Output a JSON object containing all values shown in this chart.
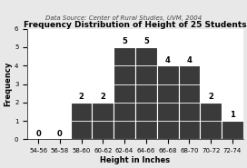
{
  "title": "Frequency Distribution of Height of 25 Students",
  "subtitle": "Data Source: Center of Rural Studies, UVM, 2004",
  "xlabel": "Height in Inches",
  "ylabel": "Frequency",
  "categories": [
    "54-56",
    "56-58",
    "58-60",
    "60-62",
    "62-64",
    "64-66",
    "66-68",
    "68-70",
    "70-72",
    "72-74"
  ],
  "values": [
    0,
    0,
    2,
    2,
    5,
    5,
    4,
    4,
    2,
    1
  ],
  "bar_color": "#3a3a3a",
  "bar_edge_color": "#ffffff",
  "ylim": [
    0,
    6
  ],
  "yticks": [
    0,
    1,
    2,
    3,
    4,
    5,
    6
  ],
  "background_color": "#e8e8e8",
  "plot_bg_color": "#ffffff",
  "title_fontsize": 6.5,
  "subtitle_fontsize": 5.0,
  "label_fontsize": 6.0,
  "tick_fontsize": 5.0,
  "annotation_fontsize": 6.0
}
